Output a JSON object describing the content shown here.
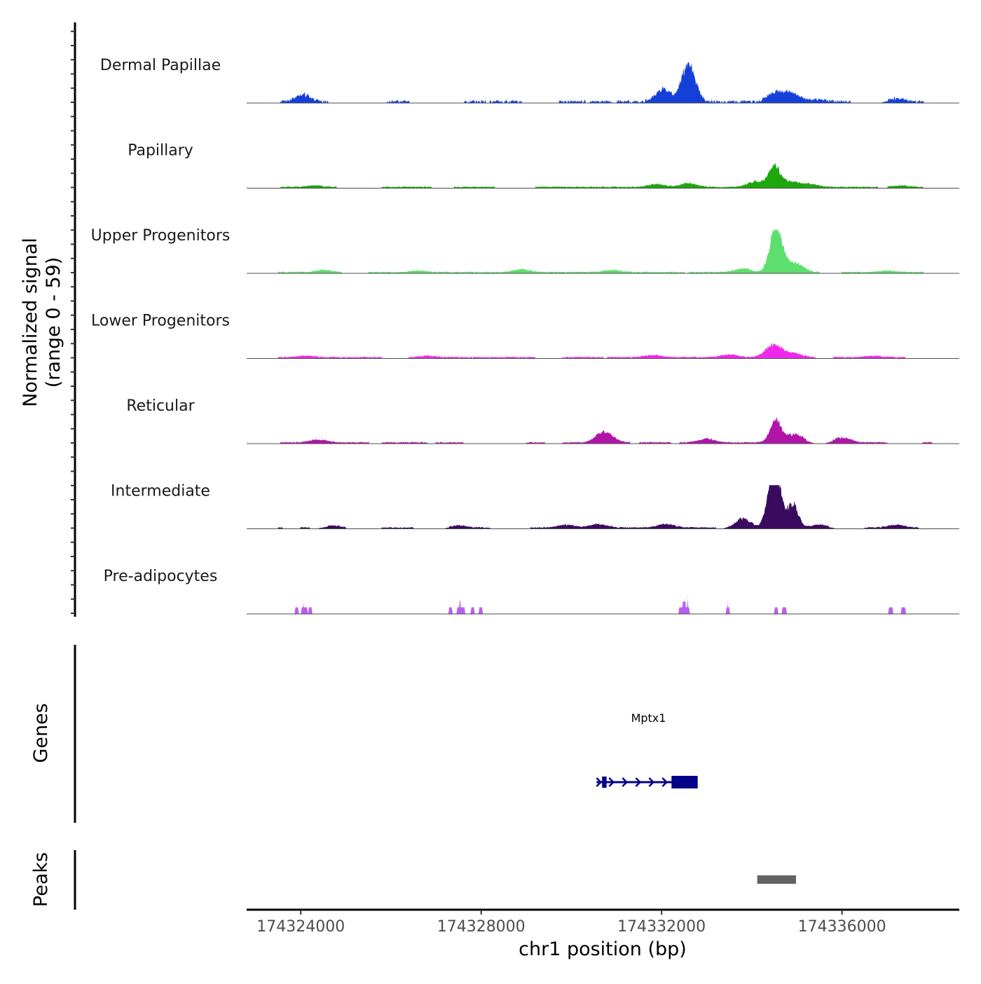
{
  "chart_data": {
    "type": "area",
    "title": "",
    "ylabel_line1": "Normalized signal",
    "ylabel_line2": "(range 0 - 59)",
    "y_range": [
      0,
      59
    ],
    "xlabel": "chr1 position (bp)",
    "x_range": [
      174322800,
      174338600
    ],
    "x_ticks": [
      {
        "value": 174324000,
        "label": "174324000"
      },
      {
        "value": 174328000,
        "label": "174328000"
      },
      {
        "value": 174332000,
        "label": "174332000"
      },
      {
        "value": 174336000,
        "label": "174336000"
      }
    ],
    "series": [
      {
        "name": "Dermal Papillae",
        "color": "#1440d9",
        "binned": true,
        "regions": [
          [
            174323550,
            174324600
          ],
          [
            174325900,
            174326400
          ],
          [
            174327600,
            174328100
          ],
          [
            174328200,
            174328900
          ],
          [
            174329700,
            174330300
          ],
          [
            174330400,
            174330900
          ],
          [
            174331000,
            174331400
          ],
          [
            174331400,
            174333200
          ],
          [
            174333200,
            174334300
          ],
          [
            174334300,
            174335000
          ],
          [
            174335000,
            174336200
          ],
          [
            174337000,
            174337800
          ]
        ],
        "peaks": [
          {
            "x": 174324050,
            "h": 9
          },
          {
            "x": 174332050,
            "h": 17
          },
          {
            "x": 174332540,
            "h": 38
          },
          {
            "x": 174332700,
            "h": 25
          },
          {
            "x": 174334530,
            "h": 13
          },
          {
            "x": 174334900,
            "h": 11
          },
          {
            "x": 174335500,
            "h": 3
          },
          {
            "x": 174337200,
            "h": 4
          }
        ]
      },
      {
        "name": "Papillary",
        "color": "#1ea60f",
        "binned": false,
        "regions": [
          [
            174323550,
            174324800
          ],
          [
            174325800,
            174326900
          ],
          [
            174327400,
            174328300
          ],
          [
            174329200,
            174331800
          ],
          [
            174331800,
            174333400
          ],
          [
            174333400,
            174335600
          ],
          [
            174335600,
            174336800
          ],
          [
            174337000,
            174337800
          ]
        ],
        "peaks": [
          {
            "x": 174324300,
            "h": 2
          },
          {
            "x": 174331900,
            "h": 4
          },
          {
            "x": 174332600,
            "h": 5
          },
          {
            "x": 174334100,
            "h": 8
          },
          {
            "x": 174334500,
            "h": 28
          },
          {
            "x": 174334850,
            "h": 8
          },
          {
            "x": 174335300,
            "h": 4
          },
          {
            "x": 174337300,
            "h": 2
          }
        ]
      },
      {
        "name": "Upper Progenitors",
        "color": "#5ddf6f",
        "binned": false,
        "regions": [
          [
            174323500,
            174324900
          ],
          [
            174325500,
            174332500
          ],
          [
            174332600,
            174334000
          ],
          [
            174334000,
            174335500
          ],
          [
            174336000,
            174337800
          ]
        ],
        "peaks": [
          {
            "x": 174324500,
            "h": 3
          },
          {
            "x": 174326600,
            "h": 2
          },
          {
            "x": 174328900,
            "h": 4
          },
          {
            "x": 174330900,
            "h": 3
          },
          {
            "x": 174333800,
            "h": 5
          },
          {
            "x": 174334500,
            "h": 45
          },
          {
            "x": 174334620,
            "h": 25
          },
          {
            "x": 174334950,
            "h": 13
          },
          {
            "x": 174337000,
            "h": 2
          }
        ]
      },
      {
        "name": "Lower Progenitors",
        "color": "#ef27ea",
        "binned": false,
        "regions": [
          [
            174323500,
            174325800
          ],
          [
            174326400,
            174329200
          ],
          [
            174329800,
            174330700
          ],
          [
            174330800,
            174334000
          ],
          [
            174334000,
            174335400
          ],
          [
            174335800,
            174337400
          ]
        ],
        "peaks": [
          {
            "x": 174324100,
            "h": 2
          },
          {
            "x": 174326800,
            "h": 2
          },
          {
            "x": 174331800,
            "h": 3
          },
          {
            "x": 174333500,
            "h": 4
          },
          {
            "x": 174334500,
            "h": 18
          },
          {
            "x": 174334950,
            "h": 5
          },
          {
            "x": 174336700,
            "h": 2
          }
        ]
      },
      {
        "name": "Reticular",
        "color": "#b015a8",
        "binned": false,
        "regions": [
          [
            174323550,
            174325500
          ],
          [
            174325800,
            174326800
          ],
          [
            174327000,
            174327600
          ],
          [
            174329000,
            174329400
          ],
          [
            174329800,
            174331300
          ],
          [
            174331500,
            174332200
          ],
          [
            174332400,
            174335200
          ],
          [
            174335800,
            174337000
          ],
          [
            174337800,
            174338000
          ]
        ],
        "peaks": [
          {
            "x": 174324400,
            "h": 4
          },
          {
            "x": 174330800,
            "h": 6
          },
          {
            "x": 174330700,
            "h": 10
          },
          {
            "x": 174333000,
            "h": 5
          },
          {
            "x": 174334530,
            "h": 30
          },
          {
            "x": 174334950,
            "h": 12
          },
          {
            "x": 174336000,
            "h": 7
          }
        ]
      },
      {
        "name": "Intermediate",
        "color": "#3a0a5e",
        "binned": false,
        "regions": [
          [
            174323500,
            174323600
          ],
          [
            174324000,
            174324200
          ],
          [
            174324600,
            174325000
          ],
          [
            174325800,
            174326500
          ],
          [
            174327300,
            174328200
          ],
          [
            174329100,
            174333200
          ],
          [
            174333700,
            174335500
          ],
          [
            174335500,
            174335700
          ],
          [
            174336500,
            174337700
          ]
        ],
        "peaks": [
          {
            "x": 174324700,
            "h": 3
          },
          {
            "x": 174327500,
            "h": 3
          },
          {
            "x": 174329900,
            "h": 4
          },
          {
            "x": 174330600,
            "h": 5
          },
          {
            "x": 174332100,
            "h": 5
          },
          {
            "x": 174333800,
            "h": 12
          },
          {
            "x": 174334450,
            "h": 42
          },
          {
            "x": 174334530,
            "h": 55
          },
          {
            "x": 174334900,
            "h": 33
          },
          {
            "x": 174335500,
            "h": 4
          },
          {
            "x": 174337200,
            "h": 4
          }
        ]
      },
      {
        "name": "Pre-adipocytes",
        "color": "#bc5df2",
        "binned": false,
        "regions": [],
        "peaks": [],
        "blocks": [
          [
            174323860,
            174323960,
            9
          ],
          [
            174324000,
            174324160,
            9
          ],
          [
            174324040,
            174324080,
            18
          ],
          [
            174324160,
            174324260,
            9
          ],
          [
            174327270,
            174327370,
            9
          ],
          [
            174327450,
            174327650,
            9
          ],
          [
            174327500,
            174327560,
            18
          ],
          [
            174327760,
            174327860,
            9
          ],
          [
            174327940,
            174328040,
            9
          ],
          [
            174332370,
            174332630,
            9
          ],
          [
            174332450,
            174332550,
            17
          ],
          [
            174332560,
            174332600,
            25
          ],
          [
            174333420,
            174333520,
            9
          ],
          [
            174333450,
            174333490,
            18
          ],
          [
            174334490,
            174334590,
            9
          ],
          [
            174334660,
            174334780,
            9
          ],
          [
            174337020,
            174337140,
            9
          ],
          [
            174337300,
            174337420,
            9
          ]
        ]
      }
    ]
  },
  "genes": {
    "title": "Genes",
    "items": [
      {
        "name": "Mptx1",
        "start": 174330620,
        "end": 174332800,
        "strand": "+",
        "color": "#030387",
        "exons": [
          [
            174330680,
            174330780
          ],
          [
            174332220,
            174332800
          ]
        ]
      }
    ]
  },
  "peaks_track": {
    "title": "Peaks",
    "color": "#636363",
    "regions": [
      [
        174334120,
        174334980
      ]
    ]
  }
}
